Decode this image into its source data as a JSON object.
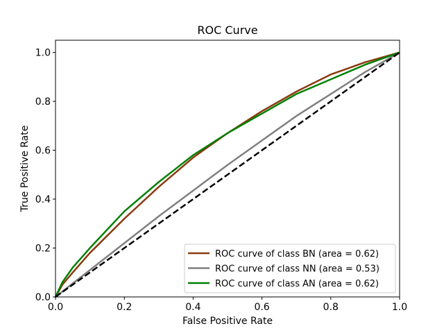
{
  "chart_data": {
    "type": "line",
    "title": "ROC Curve",
    "xlabel": "False Positive Rate",
    "ylabel": "True Positive Rate",
    "xlim": [
      0.0,
      1.0
    ],
    "ylim": [
      0.0,
      1.05
    ],
    "xticks": [
      "0.0",
      "0.2",
      "0.4",
      "0.6",
      "0.8",
      "1.0"
    ],
    "yticks": [
      "0.0",
      "0.2",
      "0.4",
      "0.6",
      "0.8",
      "1.0"
    ],
    "grid": false,
    "legend_position": "lower-right",
    "series": [
      {
        "name": "ROC curve of class BN (area = 0.62)",
        "color": "#8b3a0f",
        "x": [
          0.0,
          0.02,
          0.05,
          0.1,
          0.2,
          0.3,
          0.4,
          0.5,
          0.6,
          0.7,
          0.8,
          0.9,
          1.0
        ],
        "y": [
          0.0,
          0.05,
          0.1,
          0.18,
          0.32,
          0.45,
          0.57,
          0.67,
          0.76,
          0.84,
          0.91,
          0.96,
          1.0
        ]
      },
      {
        "name": "ROC curve of class NN (area = 0.53)",
        "color": "#7f7f7f",
        "x": [
          0.0,
          0.1,
          0.2,
          0.3,
          0.4,
          0.5,
          0.6,
          0.7,
          0.8,
          0.9,
          1.0
        ],
        "y": [
          0.0,
          0.11,
          0.22,
          0.33,
          0.435,
          0.54,
          0.64,
          0.74,
          0.83,
          0.92,
          1.0
        ]
      },
      {
        "name": "ROC curve of class AN (area = 0.62)",
        "color": "#008000",
        "x": [
          0.0,
          0.02,
          0.05,
          0.1,
          0.2,
          0.3,
          0.4,
          0.5,
          0.6,
          0.7,
          0.8,
          0.9,
          1.0
        ],
        "y": [
          0.0,
          0.06,
          0.12,
          0.2,
          0.35,
          0.47,
          0.58,
          0.67,
          0.75,
          0.83,
          0.89,
          0.95,
          1.0
        ]
      }
    ],
    "reference_line": {
      "x": [
        0.0,
        1.0
      ],
      "y": [
        0.0,
        1.0
      ],
      "color": "#000000",
      "style": "dashed"
    }
  }
}
